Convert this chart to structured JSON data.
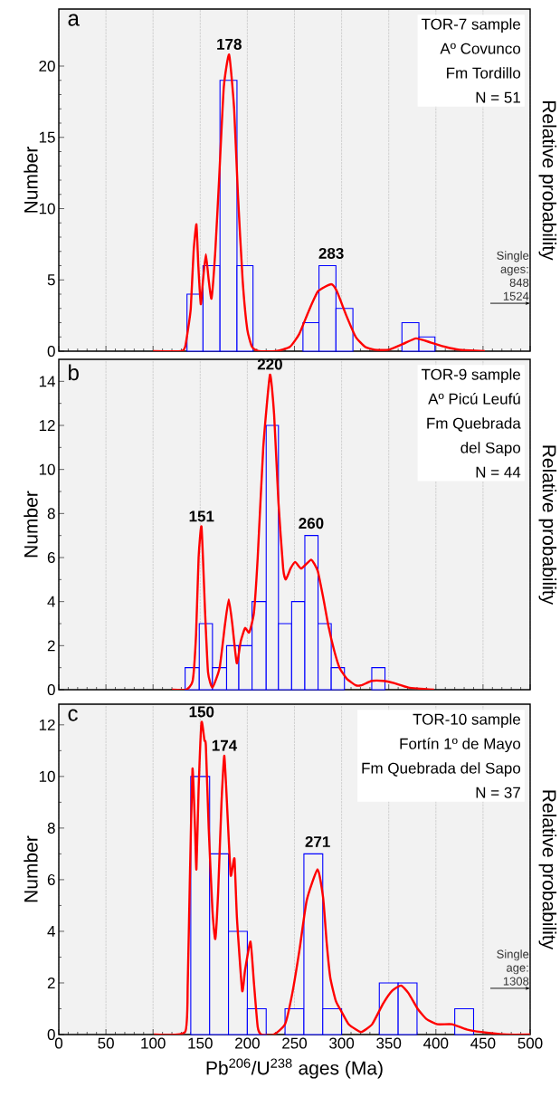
{
  "chart_data": [
    {
      "type": "histogram",
      "title": "a",
      "ylabel": "Number",
      "y2label": "Relative probability",
      "series": [
        {
          "color": "#0000ff",
          "bins": [
            136,
            153,
            171,
            189,
            206,
            259,
            276,
            294,
            312,
            364,
            382,
            399
          ],
          "values": [
            4,
            6,
            19,
            6,
            0,
            2,
            6,
            3,
            0,
            2,
            1
          ]
        },
        {
          "type": "line",
          "color": "#ff0000",
          "x": [
            100,
            130,
            134,
            137,
            140,
            143,
            146,
            148,
            150.6,
            153,
            156,
            159,
            162,
            166,
            170,
            175,
            180.7,
            186,
            190,
            195,
            200,
            205,
            212,
            230,
            245,
            255,
            265,
            275,
            289,
            295,
            305,
            315,
            325,
            335,
            350,
            365,
            379,
            395,
            410,
            425,
            452
          ],
          "values": [
            0,
            0,
            0.3,
            1.5,
            3,
            7,
            8.9,
            6,
            3.3,
            5,
            6.8,
            5,
            3.7,
            7,
            12,
            18.5,
            20.8,
            17,
            11,
            5,
            1.5,
            0.3,
            0,
            0,
            0.3,
            1.2,
            2.8,
            4.2,
            4.7,
            4.2,
            2.5,
            1.0,
            0.3,
            0.1,
            0.1,
            0.5,
            0.9,
            0.6,
            0.3,
            0.1,
            0
          ]
        }
      ],
      "annotations": [
        "TOR-7 sample",
        "Aº Covunco",
        "Fm Tordillo",
        "N = 51",
        {
          "text": "178",
          "x": 180.7,
          "y": 20.8
        },
        {
          "text": "283",
          "x": 289,
          "y": 4.7
        },
        "Single ages: 848 1524"
      ],
      "xlim": [
        0,
        500
      ],
      "xticks": [
        0,
        50,
        100,
        150,
        200,
        250,
        300,
        350,
        400,
        450,
        500
      ],
      "ylim": [
        0,
        24
      ],
      "yticks": [
        0,
        5,
        10,
        15,
        20
      ],
      "grid": "x",
      "tick_labels": "y"
    },
    {
      "type": "histogram",
      "title": "b",
      "ylabel": "Number",
      "y2label": "Relative probability",
      "series": [
        {
          "color": "#0000ff",
          "bins": [
            134,
            149,
            163,
            178,
            191,
            205,
            220,
            233,
            247,
            261,
            275,
            289,
            303,
            332,
            346
          ],
          "values": [
            1,
            3,
            1,
            2,
            2,
            4,
            12,
            3,
            4,
            7,
            3,
            1,
            0,
            1
          ]
        },
        {
          "type": "line",
          "color": "#ff0000",
          "x": [
            120,
            135,
            142,
            145.6,
            148.3,
            151.4,
            155.2,
            158.3,
            163,
            170.6,
            176.4,
            180.3,
            184,
            188.8,
            193,
            197.6,
            202,
            207,
            211,
            216.9,
            224,
            228.4,
            233,
            238,
            240.8,
            245.8,
            250.8,
            257.3,
            267.7,
            274.6,
            280.4,
            286,
            292,
            297.8,
            305.5,
            315,
            321,
            332,
            344,
            355.5,
            371,
            398
          ],
          "values": [
            0,
            0,
            0.4,
            2.5,
            6,
            7.4,
            3.5,
            0.8,
            0.1,
            1.0,
            3.0,
            4.1,
            3.0,
            1.2,
            2.2,
            2.8,
            2.6,
            3.5,
            6,
            11,
            14.3,
            12.5,
            8.5,
            5.5,
            5.0,
            5.5,
            5.8,
            5.5,
            5.9,
            5.4,
            4.2,
            2.9,
            1.8,
            1.0,
            0.5,
            0.2,
            0.2,
            0.4,
            0.4,
            0.3,
            0.1,
            0
          ]
        }
      ],
      "annotations": [
        "TOR-9 sample",
        "Aº Picú Leufú",
        "Fm Quebrada",
        "del Sapo",
        "N = 44",
        {
          "text": "151",
          "x": 151.4,
          "y": 7.4
        },
        {
          "text": "220",
          "x": 224,
          "y": 14.3
        },
        {
          "text": "260",
          "x": 267.7,
          "y": 5.9
        }
      ],
      "xlim": [
        0,
        500
      ],
      "xticks": [
        0,
        50,
        100,
        150,
        200,
        250,
        300,
        350,
        400,
        450,
        500
      ],
      "ylim": [
        0,
        15
      ],
      "yticks": [
        0,
        2,
        4,
        6,
        8,
        10,
        12,
        14
      ],
      "grid": "x",
      "tick_labels": "y"
    },
    {
      "type": "histogram",
      "title": "c",
      "xlabel": "Pb$^{206}$/U$^{238}$ ages (Ma)",
      "ylabel": "Number",
      "y2label": "Relative probability",
      "series": [
        {
          "color": "#0000ff",
          "bins": [
            140,
            160,
            180,
            200,
            220,
            240,
            260,
            280,
            300,
            320,
            340,
            360,
            380,
            400,
            420,
            440
          ],
          "values": [
            10,
            7,
            4,
            1,
            0,
            1,
            7,
            1,
            0,
            0,
            2,
            2,
            0,
            0,
            1
          ]
        },
        {
          "type": "line",
          "color": "#ff0000",
          "x": [
            101,
            134,
            136.8,
            139,
            141.8,
            144.5,
            146,
            148.3,
            151.4,
            154.5,
            156,
            159,
            163,
            166,
            169,
            172.6,
            175.6,
            179,
            182.2,
            184,
            186.4,
            189,
            194.5,
            197.6,
            203.4,
            207,
            211,
            215,
            228,
            240,
            247.7,
            255.4,
            263,
            274.6,
            280.4,
            284.3,
            288,
            293.9,
            299.7,
            307.4,
            315,
            321,
            332.4,
            344,
            353.6,
            363,
            371,
            380.6,
            390,
            401.8,
            417,
            432.6,
            448,
            475,
            500
          ],
          "values": [
            0,
            0.1,
            2,
            6,
            10.3,
            8,
            6.4,
            9.5,
            12.1,
            11.4,
            11.2,
            8,
            4.8,
            3.7,
            5.5,
            9,
            10.8,
            8.5,
            6.2,
            6.4,
            6.8,
            4.5,
            1.7,
            2.5,
            3.6,
            2.0,
            0.3,
            0,
            0,
            0.4,
            1.6,
            3.3,
            5.2,
            6.4,
            5.3,
            3.5,
            2.2,
            1.3,
            0.9,
            0.4,
            0.2,
            0.1,
            0.4,
            1.2,
            1.7,
            1.9,
            1.6,
            1.0,
            0.6,
            0.4,
            0.4,
            0.2,
            0.1,
            0,
            0
          ]
        }
      ],
      "annotations": [
        "TOR-10 sample",
        "Fortín 1º de Mayo",
        "Fm Quebrada del Sapo",
        "N = 37",
        {
          "text": "150",
          "x": 151.4,
          "y": 12.1
        },
        {
          "text": "174",
          "x": 175.6,
          "y": 10.8
        },
        {
          "text": "271",
          "x": 274.6,
          "y": 6.4
        },
        "Single age: 1308"
      ],
      "xlim": [
        0,
        500
      ],
      "xticks": [
        0,
        50,
        100,
        150,
        200,
        250,
        300,
        350,
        400,
        450,
        500
      ],
      "ylim": [
        0,
        12.8
      ],
      "yticks": [
        0,
        2,
        4,
        6,
        8,
        10,
        12
      ],
      "grid": "x"
    }
  ]
}
